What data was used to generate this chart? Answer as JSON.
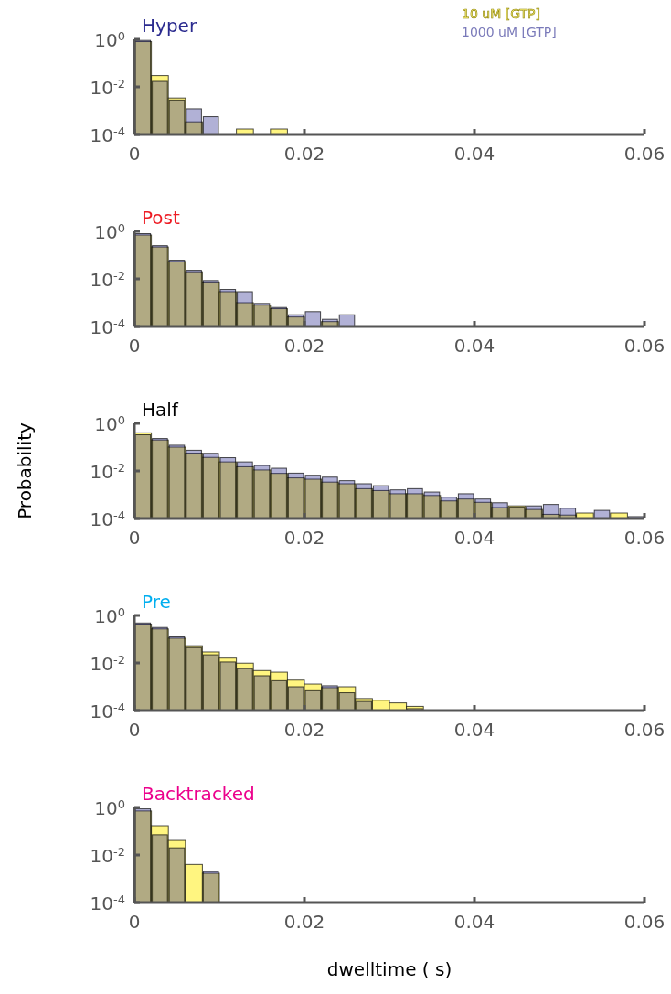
{
  "chart_data": [
    {
      "type": "histogram",
      "title": "Hyper",
      "log": "y",
      "legend": "top right",
      "xlim": [
        0,
        0.06
      ],
      "xticks": [
        0,
        0.02,
        0.04,
        0.06
      ],
      "ylim": [
        0.0001,
        1
      ],
      "yticks": [
        {
          "value": 1,
          "label": "10$^{0}$"
        },
        {
          "value": 0.01,
          "label": "10$^{-2}$"
        },
        {
          "value": 0.0001,
          "label": "10$^{-4}$"
        }
      ],
      "bins": [
        0,
        0.002,
        0.004,
        0.006,
        0.008,
        0.01,
        0.012,
        0.014,
        0.016,
        0.018
      ],
      "series": [
        {
          "name": "10 uM [GTP]",
          "color": "#fff580",
          "values": [
            0.8,
            0.03,
            0.0034,
            0.00034,
            null,
            null,
            0.00017,
            null,
            0.00017
          ]
        },
        {
          "name": "1000 uM [GTP]",
          "color": "#20208a",
          "values": [
            0.9,
            0.017,
            0.0028,
            0.0012,
            0.00056,
            null,
            null,
            null,
            null
          ]
        }
      ]
    },
    {
      "type": "histogram",
      "title": "Post",
      "log": "y",
      "xlim": [
        0,
        0.06
      ],
      "xticks": [
        0,
        0.02,
        0.04,
        0.06
      ],
      "ylim": [
        0.0001,
        1
      ],
      "yticks": [
        {
          "value": 1,
          "label": "10$^{0}$"
        },
        {
          "value": 0.01,
          "label": "10$^{-2}$"
        },
        {
          "value": 0.0001,
          "label": "10$^{-4}$"
        }
      ],
      "bins": [
        0,
        0.002,
        0.004,
        0.006,
        0.008,
        0.01,
        0.012,
        0.014,
        0.016,
        0.018,
        0.02,
        0.022,
        0.024,
        0.026
      ],
      "series": [
        {
          "color": "#fff580",
          "values": [
            0.7,
            0.22,
            0.054,
            0.02,
            0.0074,
            0.0029,
            0.001,
            0.00079,
            0.00056,
            0.00025,
            null,
            0.00016,
            null
          ]
        },
        {
          "color": "#20208a",
          "values": [
            0.8,
            0.25,
            0.061,
            0.023,
            0.0085,
            0.0036,
            0.0029,
            0.00093,
            0.00063,
            0.00031,
            0.00042,
            0.0002,
            0.00031
          ]
        }
      ]
    },
    {
      "type": "histogram",
      "title": "Half",
      "ylabel": "Probability",
      "log": "y",
      "xlim": [
        0,
        0.06
      ],
      "xticks": [
        0,
        0.02,
        0.04,
        0.06
      ],
      "ylim": [
        0.0001,
        1
      ],
      "yticks": [
        {
          "value": 1,
          "label": "10$^{0}$"
        },
        {
          "value": 0.01,
          "label": "10$^{-2}$"
        },
        {
          "value": 0.0001,
          "label": "10$^{-4}$"
        }
      ],
      "bins": [
        0,
        0.002,
        0.004,
        0.006,
        0.008,
        0.01,
        0.012,
        0.014,
        0.016,
        0.018,
        0.02,
        0.022,
        0.024,
        0.026,
        0.028,
        0.03,
        0.032,
        0.034,
        0.036,
        0.038,
        0.04,
        0.042,
        0.044,
        0.046,
        0.048,
        0.05,
        0.052,
        0.054,
        0.056,
        0.058,
        0.06
      ],
      "series": [
        {
          "color": "#fff580",
          "values": [
            0.4,
            0.2,
            0.1,
            0.056,
            0.037,
            0.024,
            0.015,
            0.011,
            0.0079,
            0.0051,
            0.0045,
            0.0034,
            0.0029,
            0.0018,
            0.0015,
            0.0011,
            0.0011,
            0.00093,
            0.00055,
            0.00066,
            0.00048,
            0.00029,
            0.00034,
            0.00024,
            0.00015,
            0.00014,
            0.00017,
            null,
            0.00017,
            null
          ]
        },
        {
          "color": "#20208a",
          "values": [
            0.33,
            0.23,
            0.12,
            0.074,
            0.055,
            0.036,
            0.024,
            0.017,
            0.013,
            0.0081,
            0.0066,
            0.0055,
            0.0039,
            0.0029,
            0.0024,
            0.0016,
            0.0018,
            0.0013,
            0.00079,
            0.0011,
            0.00066,
            0.00046,
            0.0003,
            0.00034,
            0.00039,
            0.00027,
            null,
            0.00022,
            null,
            0.00012
          ]
        }
      ]
    },
    {
      "type": "histogram",
      "title": "Pre",
      "log": "y",
      "xlim": [
        0,
        0.06
      ],
      "xticks": [
        0,
        0.02,
        0.04,
        0.06
      ],
      "ylim": [
        0.0001,
        1
      ],
      "yticks": [
        {
          "value": 1,
          "label": "10$^{0}$"
        },
        {
          "value": 0.01,
          "label": "10$^{-2}$"
        },
        {
          "value": 0.0001,
          "label": "10$^{-4}$"
        }
      ],
      "bins": [
        0,
        0.002,
        0.004,
        0.006,
        0.008,
        0.01,
        0.012,
        0.014,
        0.016,
        0.018,
        0.02,
        0.022,
        0.024,
        0.026,
        0.028,
        0.03,
        0.032,
        0.034
      ],
      "series": [
        {
          "color": "#fff580",
          "values": [
            0.43,
            0.27,
            0.11,
            0.053,
            0.029,
            0.016,
            0.0098,
            0.0048,
            0.0041,
            0.0019,
            0.0013,
            0.00092,
            0.001,
            0.00032,
            0.00027,
            0.00021,
            0.00015
          ]
        },
        {
          "color": "#20208a",
          "values": [
            0.48,
            0.31,
            0.125,
            0.044,
            0.022,
            0.011,
            0.0058,
            0.0029,
            0.0018,
            0.001,
            0.00068,
            0.0011,
            0.00056,
            0.00024,
            null,
            null,
            0.00012
          ]
        }
      ]
    },
    {
      "type": "histogram",
      "title": "Backtracked",
      "xlabel": "dwelltime ( s)",
      "log": "y",
      "xlim": [
        0,
        0.06
      ],
      "xticks": [
        0,
        0.02,
        0.04,
        0.06
      ],
      "ylim": [
        0.0001,
        1
      ],
      "yticks": [
        {
          "value": 1,
          "label": "10$^{0}$"
        },
        {
          "value": 0.01,
          "label": "10$^{-2}$"
        },
        {
          "value": 0.0001,
          "label": "10$^{-4}$"
        }
      ],
      "bins": [
        0,
        0.002,
        0.004,
        0.006,
        0.008,
        0.01
      ],
      "series": [
        {
          "color": "#fff580",
          "values": [
            0.71,
            0.17,
            0.041,
            0.004,
            0.0017
          ]
        },
        {
          "color": "#20208a",
          "values": [
            0.87,
            0.071,
            0.02,
            null,
            0.002
          ]
        }
      ]
    }
  ]
}
